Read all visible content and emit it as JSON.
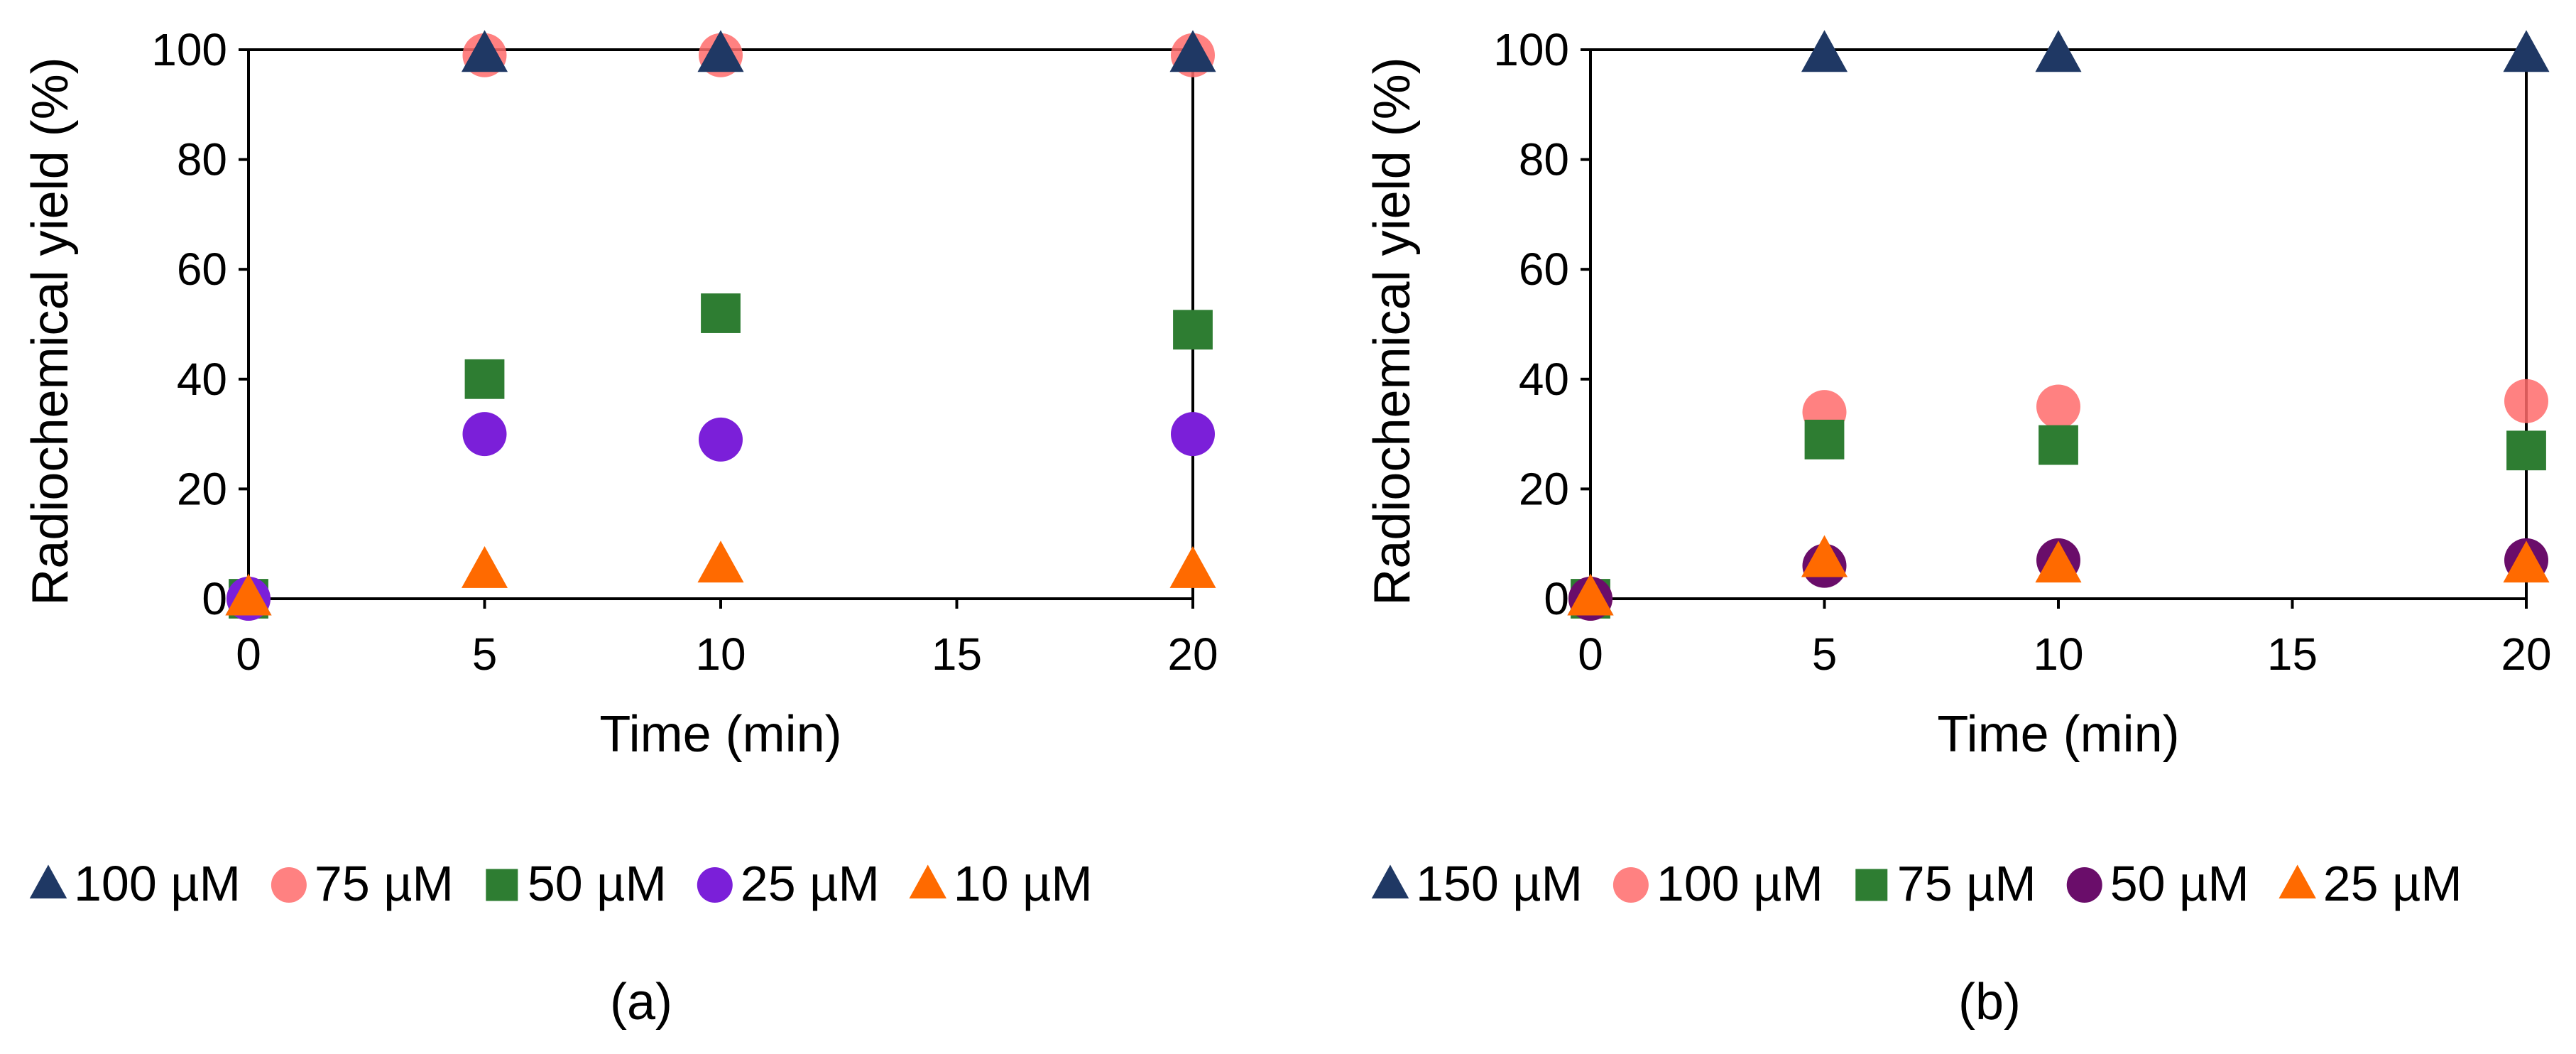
{
  "chart_data": [
    {
      "panel": "(a)",
      "type": "scatter",
      "xlabel": "Time (min)",
      "ylabel": "Radiochemical yield (%)",
      "xlim": [
        0,
        20
      ],
      "ylim": [
        0,
        100
      ],
      "xticks": [
        0,
        5,
        10,
        15,
        20
      ],
      "yticks": [
        0,
        20,
        40,
        60,
        80,
        100
      ],
      "x": [
        0,
        5,
        10,
        20
      ],
      "series": [
        {
          "name": "100 µM",
          "marker": "triangle",
          "color": "#1f3864",
          "values": [
            0,
            99,
            99,
            99
          ]
        },
        {
          "name": "75 µM",
          "marker": "circle",
          "color": "#ff6b6b",
          "opacity": 0.85,
          "values": [
            0,
            99,
            99,
            99
          ]
        },
        {
          "name": "50 µM",
          "marker": "square",
          "color": "#2e7d32",
          "values": [
            0,
            40,
            52,
            49
          ]
        },
        {
          "name": "25 µM",
          "marker": "circle",
          "color": "#7b1fd9",
          "values": [
            0,
            30,
            29,
            30
          ]
        },
        {
          "name": "10 µM",
          "marker": "triangle",
          "color": "#ff6a00",
          "values": [
            0,
            5,
            6,
            5
          ]
        }
      ]
    },
    {
      "panel": "(b)",
      "type": "scatter",
      "xlabel": "Time (min)",
      "ylabel": "Radiochemical yield (%)",
      "xlim": [
        0,
        20
      ],
      "ylim": [
        0,
        100
      ],
      "xticks": [
        0,
        5,
        10,
        15,
        20
      ],
      "yticks": [
        0,
        20,
        40,
        60,
        80,
        100
      ],
      "x": [
        0,
        5,
        10,
        20
      ],
      "series": [
        {
          "name": "150 µM",
          "marker": "triangle",
          "color": "#1f3864",
          "values": [
            0,
            99,
            99,
            99
          ]
        },
        {
          "name": "100 µM",
          "marker": "circle",
          "color": "#ff6b6b",
          "opacity": 0.85,
          "values": [
            0,
            34,
            35,
            36
          ]
        },
        {
          "name": "75 µM",
          "marker": "square",
          "color": "#2e7d32",
          "values": [
            0,
            29,
            28,
            27
          ]
        },
        {
          "name": "50 µM",
          "marker": "circle",
          "color": "#6a0d6a",
          "values": [
            0,
            6,
            7,
            7
          ]
        },
        {
          "name": "25 µM",
          "marker": "triangle",
          "color": "#ff6a00",
          "values": [
            0,
            7,
            6,
            6
          ]
        }
      ]
    }
  ]
}
